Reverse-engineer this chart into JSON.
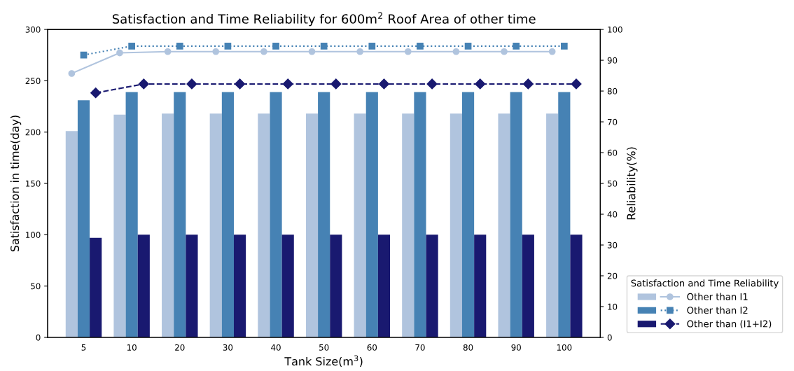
{
  "chart_data": {
    "type": "bar",
    "title": "Satisfaction and Time Reliability for 600m$^{2}$ Roof Area of other time",
    "xlabel": "Tank Size(m$^{3}$)",
    "ylabel": "Satisfaction in time(day)",
    "y2label": "Reliability(%)",
    "legend_title": "Satisfaction and Time Reliability",
    "categories": [
      "5",
      "10",
      "20",
      "30",
      "40",
      "50",
      "60",
      "70",
      "80",
      "90",
      "100"
    ],
    "ylim": [
      0,
      300
    ],
    "yticks": [
      0,
      50,
      100,
      150,
      200,
      250,
      300
    ],
    "y2lim": [
      0,
      100
    ],
    "y2ticks": [
      0,
      10,
      20,
      30,
      40,
      50,
      60,
      70,
      80,
      90,
      100
    ],
    "legend": "bottom right",
    "grid": false,
    "series": [
      {
        "name": "Other than I1",
        "color": "#b0c4de",
        "values": [
          201,
          217,
          218,
          218,
          218,
          218,
          218,
          218,
          218,
          218,
          218
        ]
      },
      {
        "name": "Other than I2",
        "color": "#4682b4",
        "values": [
          231,
          239,
          239,
          239,
          239,
          239,
          239,
          239,
          239,
          239,
          239
        ]
      },
      {
        "name": "Other than (I1+I2)",
        "color": "#191970",
        "values": [
          97,
          100,
          100,
          100,
          100,
          100,
          100,
          100,
          100,
          100,
          100
        ]
      },
      {
        "type": "line",
        "axis": "y2",
        "color": "#b0c4de",
        "marker": "circle",
        "line_style": "solid",
        "values": [
          85.7,
          92.4,
          92.8,
          92.8,
          92.8,
          92.8,
          92.8,
          92.8,
          92.8,
          92.8,
          92.8
        ]
      },
      {
        "type": "line",
        "axis": "y2",
        "color": "#4682b4",
        "marker": "square",
        "line_style": "dotted",
        "values": [
          91.7,
          94.6,
          94.6,
          94.6,
          94.6,
          94.6,
          94.6,
          94.6,
          94.6,
          94.6,
          94.6
        ]
      },
      {
        "type": "line",
        "axis": "y2",
        "color": "#191970",
        "marker": "diamond",
        "line_style": "dashed",
        "values": [
          79.4,
          82.3,
          82.3,
          82.3,
          82.3,
          82.3,
          82.3,
          82.3,
          82.3,
          82.3,
          82.3
        ]
      }
    ]
  }
}
